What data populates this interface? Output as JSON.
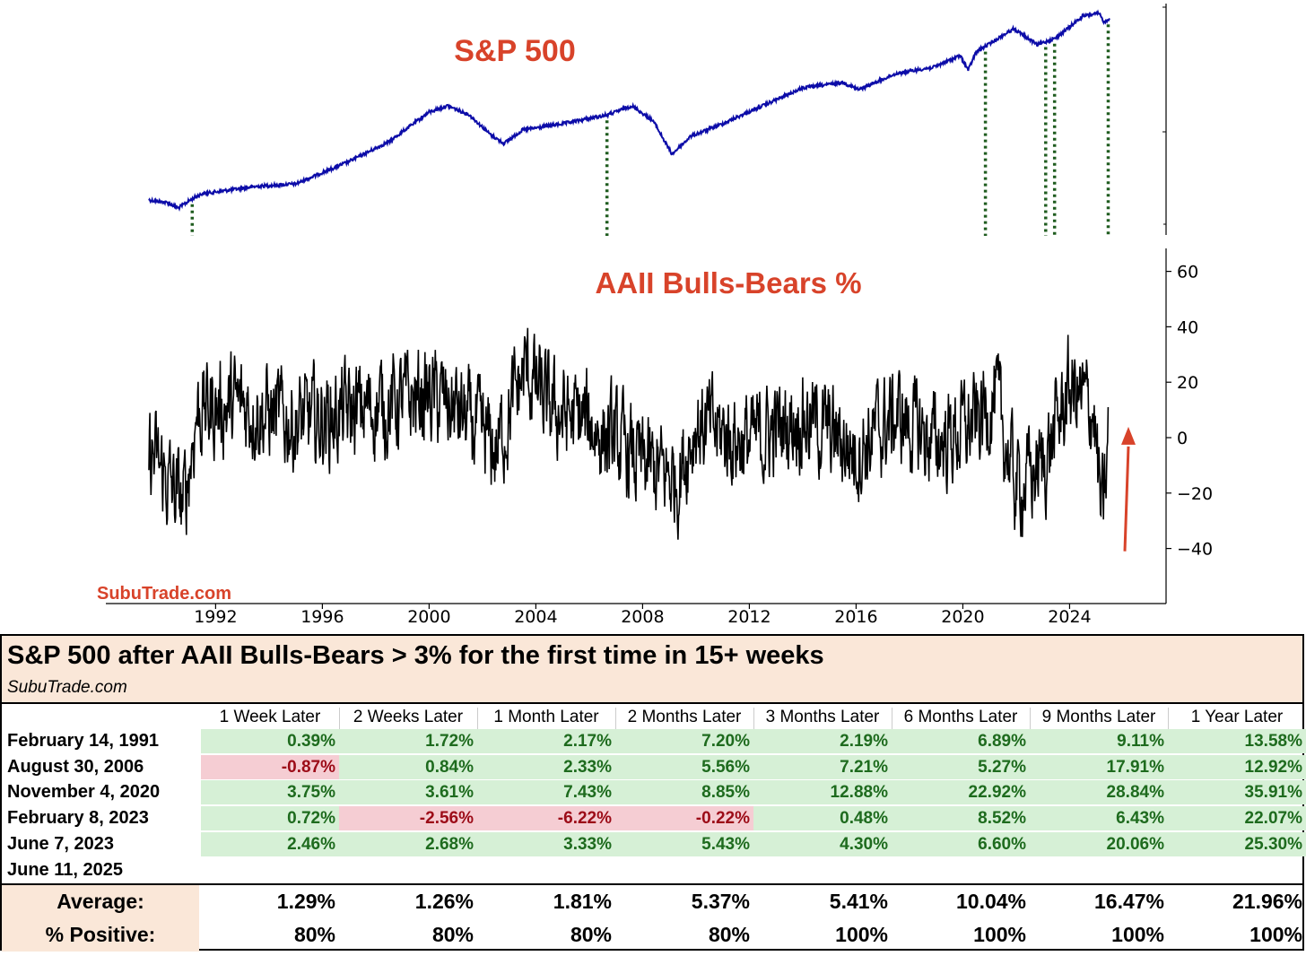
{
  "chart_data": [
    {
      "type": "line",
      "title": "S&P 500",
      "yscale": "log",
      "y_tick_labels_visible": false,
      "series": [
        {
          "color": "#0c0ca8"
        }
      ],
      "signal_dates": [
        "February 14, 1991",
        "August 30, 2006",
        "November 4, 2020",
        "February 8, 2023",
        "June 7, 2023",
        "June 11, 2025"
      ],
      "signal_line_color": "#1f5c1f",
      "grid": false
    },
    {
      "type": "line",
      "title": "AAII Bulls-Bears %",
      "xlim": [
        1989.5,
        2025.8
      ],
      "ylim": [
        -56,
        68
      ],
      "yticks": [
        60,
        40,
        20,
        0,
        -20,
        -40
      ],
      "ytick_labels": [
        "60",
        "40",
        "20",
        "0",
        "−20",
        "−40"
      ],
      "xticks": [
        1992,
        1996,
        2000,
        2004,
        2008,
        2012,
        2016,
        2020,
        2024
      ],
      "xtick_labels": [
        "1992",
        "1996",
        "2000",
        "2004",
        "2008",
        "2012",
        "2016",
        "2020",
        "2024"
      ],
      "series": [
        {
          "color": "#000000"
        }
      ],
      "annotation": {
        "type": "arrow",
        "color": "#d8432a",
        "from_y": -41,
        "to_y": 2
      },
      "grid": false
    }
  ],
  "watermark": "SubuTrade.com",
  "table": {
    "title": "S&P 500 after AAII Bulls-Bears > 3% for the first time in 15+ weeks",
    "subtitle": "SubuTrade.com",
    "columns": [
      "1 Week Later",
      "2 Weeks Later",
      "1 Month Later",
      "2 Months Later",
      "3 Months Later",
      "6 Months Later",
      "9 Months Later",
      "1 Year Later"
    ],
    "rows": [
      {
        "date": "February 14, 1991",
        "values": [
          "0.39%",
          "1.72%",
          "2.17%",
          "7.20%",
          "2.19%",
          "6.89%",
          "9.11%",
          "13.58%"
        ]
      },
      {
        "date": "August 30, 2006",
        "values": [
          "-0.87%",
          "0.84%",
          "2.33%",
          "5.56%",
          "7.21%",
          "5.27%",
          "17.91%",
          "12.92%"
        ]
      },
      {
        "date": "November 4, 2020",
        "values": [
          "3.75%",
          "3.61%",
          "7.43%",
          "8.85%",
          "12.88%",
          "22.92%",
          "28.84%",
          "35.91%"
        ]
      },
      {
        "date": "February 8, 2023",
        "values": [
          "0.72%",
          "-2.56%",
          "-6.22%",
          "-0.22%",
          "0.48%",
          "8.52%",
          "6.43%",
          "22.07%"
        ]
      },
      {
        "date": "June 7, 2023",
        "values": [
          "2.46%",
          "2.68%",
          "3.33%",
          "5.43%",
          "4.30%",
          "6.60%",
          "20.06%",
          "25.30%"
        ]
      },
      {
        "date": "June 11, 2025",
        "values": [
          "",
          "",
          "",
          "",
          "",
          "",
          "",
          ""
        ]
      }
    ],
    "summary": [
      {
        "label": "Average:",
        "values": [
          "1.29%",
          "1.26%",
          "1.81%",
          "5.37%",
          "5.41%",
          "10.04%",
          "16.47%",
          "21.96%"
        ]
      },
      {
        "label": "% Positive:",
        "values": [
          "80%",
          "80%",
          "80%",
          "80%",
          "100%",
          "100%",
          "100%",
          "100%"
        ]
      }
    ]
  },
  "colors": {
    "positive_bg": "#d6f0d6",
    "positive_text": "#1e6b1e",
    "negative_bg": "#f5cdd3",
    "negative_text": "#9c0b17",
    "header_bg": "#fae7d8",
    "title_red": "#d8432a"
  }
}
